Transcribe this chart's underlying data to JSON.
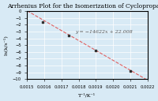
{
  "title": "Arrhenius Plot for the Isomerization of Cyclopropane",
  "xlabel": "T⁻¹/K⁻¹",
  "ylabel": "ln(k/s⁻¹)",
  "xlim": [
    0.0015,
    0.0022
  ],
  "ylim": [
    -10,
    0
  ],
  "xticks": [
    0.0015,
    0.0016,
    0.0017,
    0.0018,
    0.0019,
    0.002,
    0.0021,
    0.0022
  ],
  "yticks": [
    0,
    -1,
    -2,
    -3,
    -4,
    -5,
    -6,
    -7,
    -8,
    -9,
    -10
  ],
  "slope": -14622,
  "intercept": 22.008,
  "equation_text": "y = −14622x + 22.008",
  "data_points": [
    [
      0.00159,
      -1.55
    ],
    [
      0.00174,
      -3.55
    ],
    [
      0.0019,
      -5.75
    ],
    [
      0.0021,
      -8.85
    ]
  ],
  "line_color": "#e06060",
  "line_style": "--",
  "marker_color": "#333333",
  "bg_color": "#d8eaf5",
  "grid_color": "#ffffff",
  "title_fontsize": 5.5,
  "label_fontsize": 4.5,
  "tick_fontsize": 3.8,
  "eq_fontsize": 4.5
}
